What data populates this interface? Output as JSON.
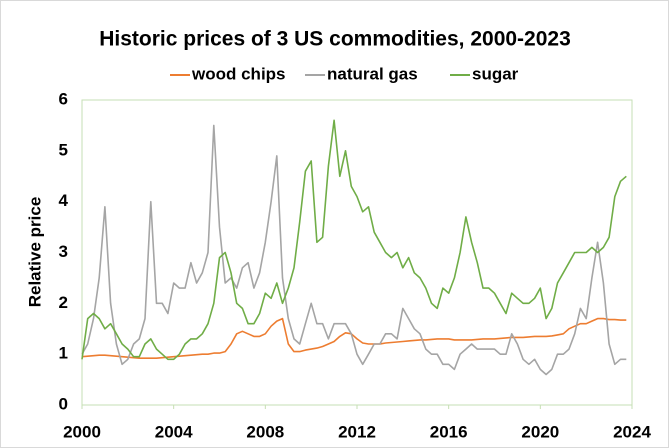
{
  "chart_data": {
    "type": "line",
    "title": "Historic prices of 3 US commodities, 2000-2023",
    "y_label": "Relative price",
    "x": [
      2000,
      2000.25,
      2000.5,
      2000.75,
      2001,
      2001.25,
      2001.5,
      2001.75,
      2002,
      2002.25,
      2002.5,
      2002.75,
      2003,
      2003.25,
      2003.5,
      2003.75,
      2004,
      2004.25,
      2004.5,
      2004.75,
      2005,
      2005.25,
      2005.5,
      2005.75,
      2006,
      2006.25,
      2006.5,
      2006.75,
      2007,
      2007.25,
      2007.5,
      2007.75,
      2008,
      2008.25,
      2008.5,
      2008.75,
      2009,
      2009.25,
      2009.5,
      2009.75,
      2010,
      2010.25,
      2010.5,
      2010.75,
      2011,
      2011.25,
      2011.5,
      2011.75,
      2012,
      2012.25,
      2012.5,
      2012.75,
      2013,
      2013.25,
      2013.5,
      2013.75,
      2014,
      2014.25,
      2014.5,
      2014.75,
      2015,
      2015.25,
      2015.5,
      2015.75,
      2016,
      2016.25,
      2016.5,
      2016.75,
      2017,
      2017.25,
      2017.5,
      2017.75,
      2018,
      2018.25,
      2018.5,
      2018.75,
      2019,
      2019.25,
      2019.5,
      2019.75,
      2020,
      2020.25,
      2020.5,
      2020.75,
      2021,
      2021.25,
      2021.5,
      2021.75,
      2022,
      2022.25,
      2022.5,
      2022.75,
      2023,
      2023.25,
      2023.5,
      2023.75
    ],
    "series": [
      {
        "name": "wood chips",
        "color": "#ed7d31",
        "values": [
          0.95,
          0.96,
          0.97,
          0.98,
          0.98,
          0.97,
          0.96,
          0.95,
          0.94,
          0.93,
          0.92,
          0.92,
          0.92,
          0.92,
          0.93,
          0.94,
          0.95,
          0.96,
          0.97,
          0.98,
          0.99,
          1.0,
          1.0,
          1.02,
          1.02,
          1.05,
          1.2,
          1.4,
          1.45,
          1.4,
          1.35,
          1.35,
          1.4,
          1.55,
          1.65,
          1.7,
          1.2,
          1.05,
          1.05,
          1.08,
          1.1,
          1.12,
          1.15,
          1.2,
          1.25,
          1.35,
          1.42,
          1.4,
          1.3,
          1.22,
          1.2,
          1.2,
          1.2,
          1.22,
          1.23,
          1.24,
          1.25,
          1.26,
          1.27,
          1.28,
          1.28,
          1.29,
          1.3,
          1.3,
          1.3,
          1.28,
          1.28,
          1.28,
          1.28,
          1.29,
          1.3,
          1.3,
          1.3,
          1.31,
          1.32,
          1.33,
          1.33,
          1.33,
          1.34,
          1.35,
          1.35,
          1.35,
          1.36,
          1.38,
          1.4,
          1.5,
          1.55,
          1.6,
          1.6,
          1.65,
          1.7,
          1.7,
          1.68,
          1.68,
          1.67,
          1.67
        ]
      },
      {
        "name": "natural gas",
        "color": "#a5a5a5",
        "values": [
          1.0,
          1.2,
          1.7,
          2.5,
          3.9,
          2.0,
          1.2,
          0.8,
          0.9,
          1.2,
          1.3,
          1.7,
          4.0,
          2.0,
          2.0,
          1.8,
          2.4,
          2.3,
          2.3,
          2.8,
          2.4,
          2.6,
          3.0,
          5.5,
          3.5,
          2.4,
          2.5,
          2.3,
          2.7,
          2.8,
          2.3,
          2.6,
          3.2,
          4.0,
          4.9,
          2.5,
          1.7,
          1.3,
          1.2,
          1.6,
          2.0,
          1.6,
          1.6,
          1.3,
          1.6,
          1.6,
          1.6,
          1.4,
          1.0,
          0.8,
          1.0,
          1.2,
          1.2,
          1.4,
          1.4,
          1.3,
          1.9,
          1.7,
          1.5,
          1.4,
          1.1,
          1.0,
          1.0,
          0.8,
          0.8,
          0.7,
          1.0,
          1.1,
          1.2,
          1.1,
          1.1,
          1.1,
          1.1,
          1.0,
          1.0,
          1.4,
          1.2,
          0.9,
          0.8,
          0.9,
          0.7,
          0.6,
          0.7,
          1.0,
          1.0,
          1.1,
          1.4,
          1.9,
          1.7,
          2.5,
          3.2,
          2.4,
          1.2,
          0.8,
          0.9,
          0.9
        ]
      },
      {
        "name": "sugar",
        "color": "#70ad47",
        "values": [
          0.9,
          1.7,
          1.8,
          1.7,
          1.5,
          1.6,
          1.4,
          1.2,
          1.1,
          0.95,
          0.95,
          1.2,
          1.3,
          1.1,
          1.0,
          0.9,
          0.9,
          1.0,
          1.2,
          1.3,
          1.3,
          1.4,
          1.6,
          2.0,
          2.9,
          3.0,
          2.6,
          2.0,
          1.9,
          1.6,
          1.6,
          1.8,
          2.2,
          2.1,
          2.4,
          2.0,
          2.3,
          2.7,
          3.6,
          4.6,
          4.8,
          3.2,
          3.3,
          4.7,
          5.6,
          4.5,
          5.0,
          4.3,
          4.1,
          3.8,
          3.9,
          3.4,
          3.2,
          3.0,
          2.9,
          3.0,
          2.7,
          2.9,
          2.6,
          2.5,
          2.3,
          2.0,
          1.9,
          2.3,
          2.2,
          2.5,
          3.0,
          3.7,
          3.2,
          2.8,
          2.3,
          2.3,
          2.2,
          2.0,
          1.8,
          2.2,
          2.1,
          2.0,
          2.0,
          2.1,
          2.3,
          1.7,
          1.9,
          2.4,
          2.6,
          2.8,
          3.0,
          3.0,
          3.0,
          3.1,
          3.0,
          3.1,
          3.3,
          4.1,
          4.4,
          4.5
        ]
      }
    ],
    "xlim": [
      2000,
      2024
    ],
    "xticks": [
      2000,
      2004,
      2008,
      2012,
      2016,
      2020,
      2024
    ],
    "ylim": [
      0,
      6
    ],
    "yticks": [
      0,
      1,
      2,
      3,
      4,
      5,
      6
    ],
    "grid": false,
    "legend": "top"
  }
}
